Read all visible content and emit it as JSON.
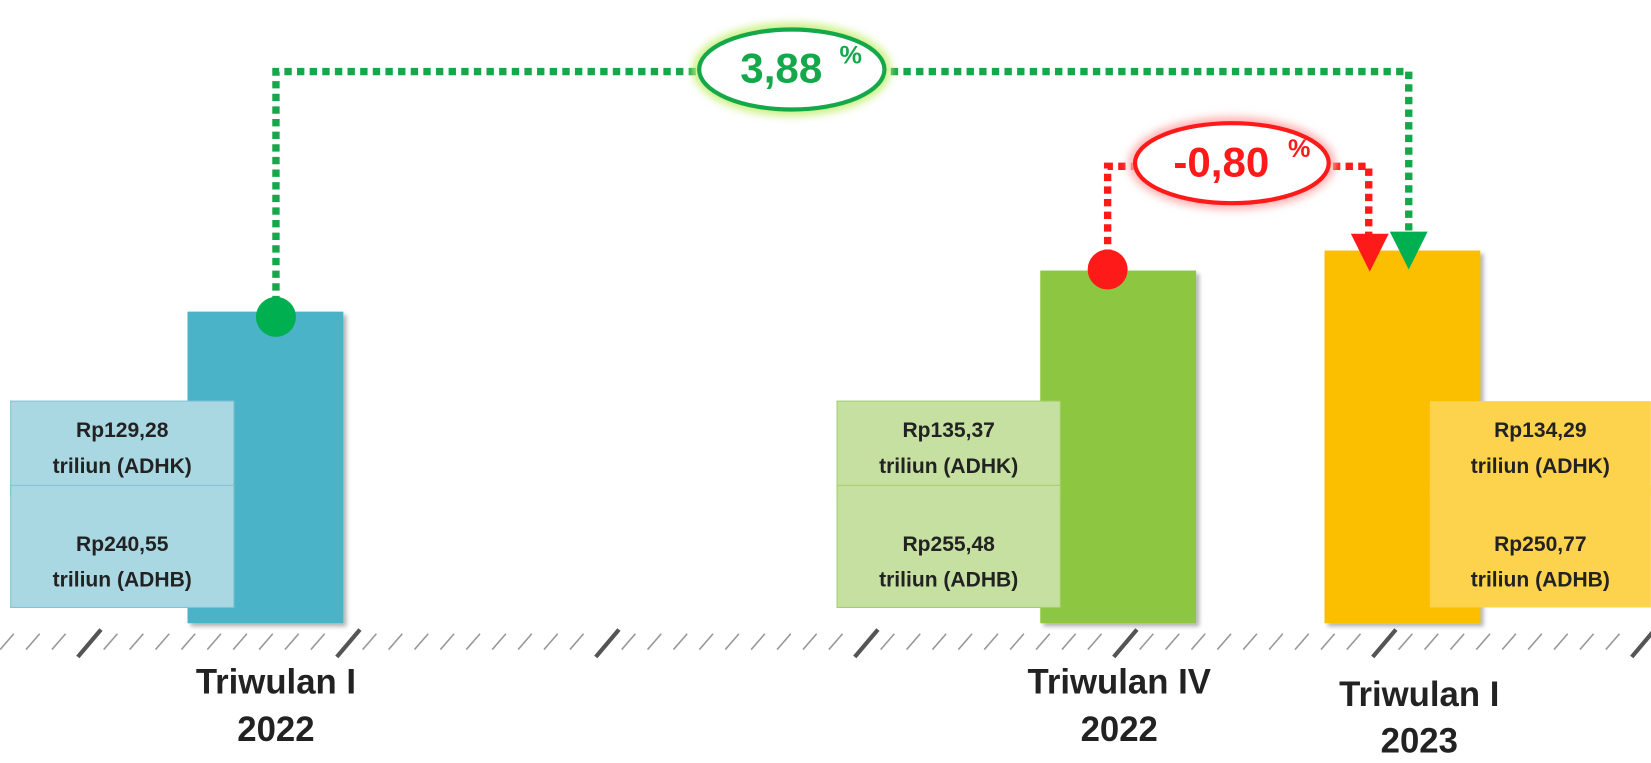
{
  "periods": [
    {
      "name": "Triwulan I",
      "year": "2022",
      "adhk": "Rp129,28",
      "adhk_unit": "triliun (ADHK)",
      "adhb": "Rp240,55",
      "adhb_unit": "triliun (ADHB)"
    },
    {
      "name": "Triwulan IV",
      "year": "2022",
      "adhk": "Rp135,37",
      "adhk_unit": "triliun (ADHK)",
      "adhb": "Rp255,48",
      "adhb_unit": "triliun (ADHB)"
    },
    {
      "name": "Triwulan I",
      "year": "2023",
      "adhk": "Rp134,29",
      "adhk_unit": "triliun (ADHK)",
      "adhb": "Rp250,77",
      "adhb_unit": "triliun (ADHB)"
    }
  ],
  "growth": [
    {
      "value": "3,88",
      "unit": "%"
    },
    {
      "value": "-0,80",
      "unit": "%"
    }
  ]
}
